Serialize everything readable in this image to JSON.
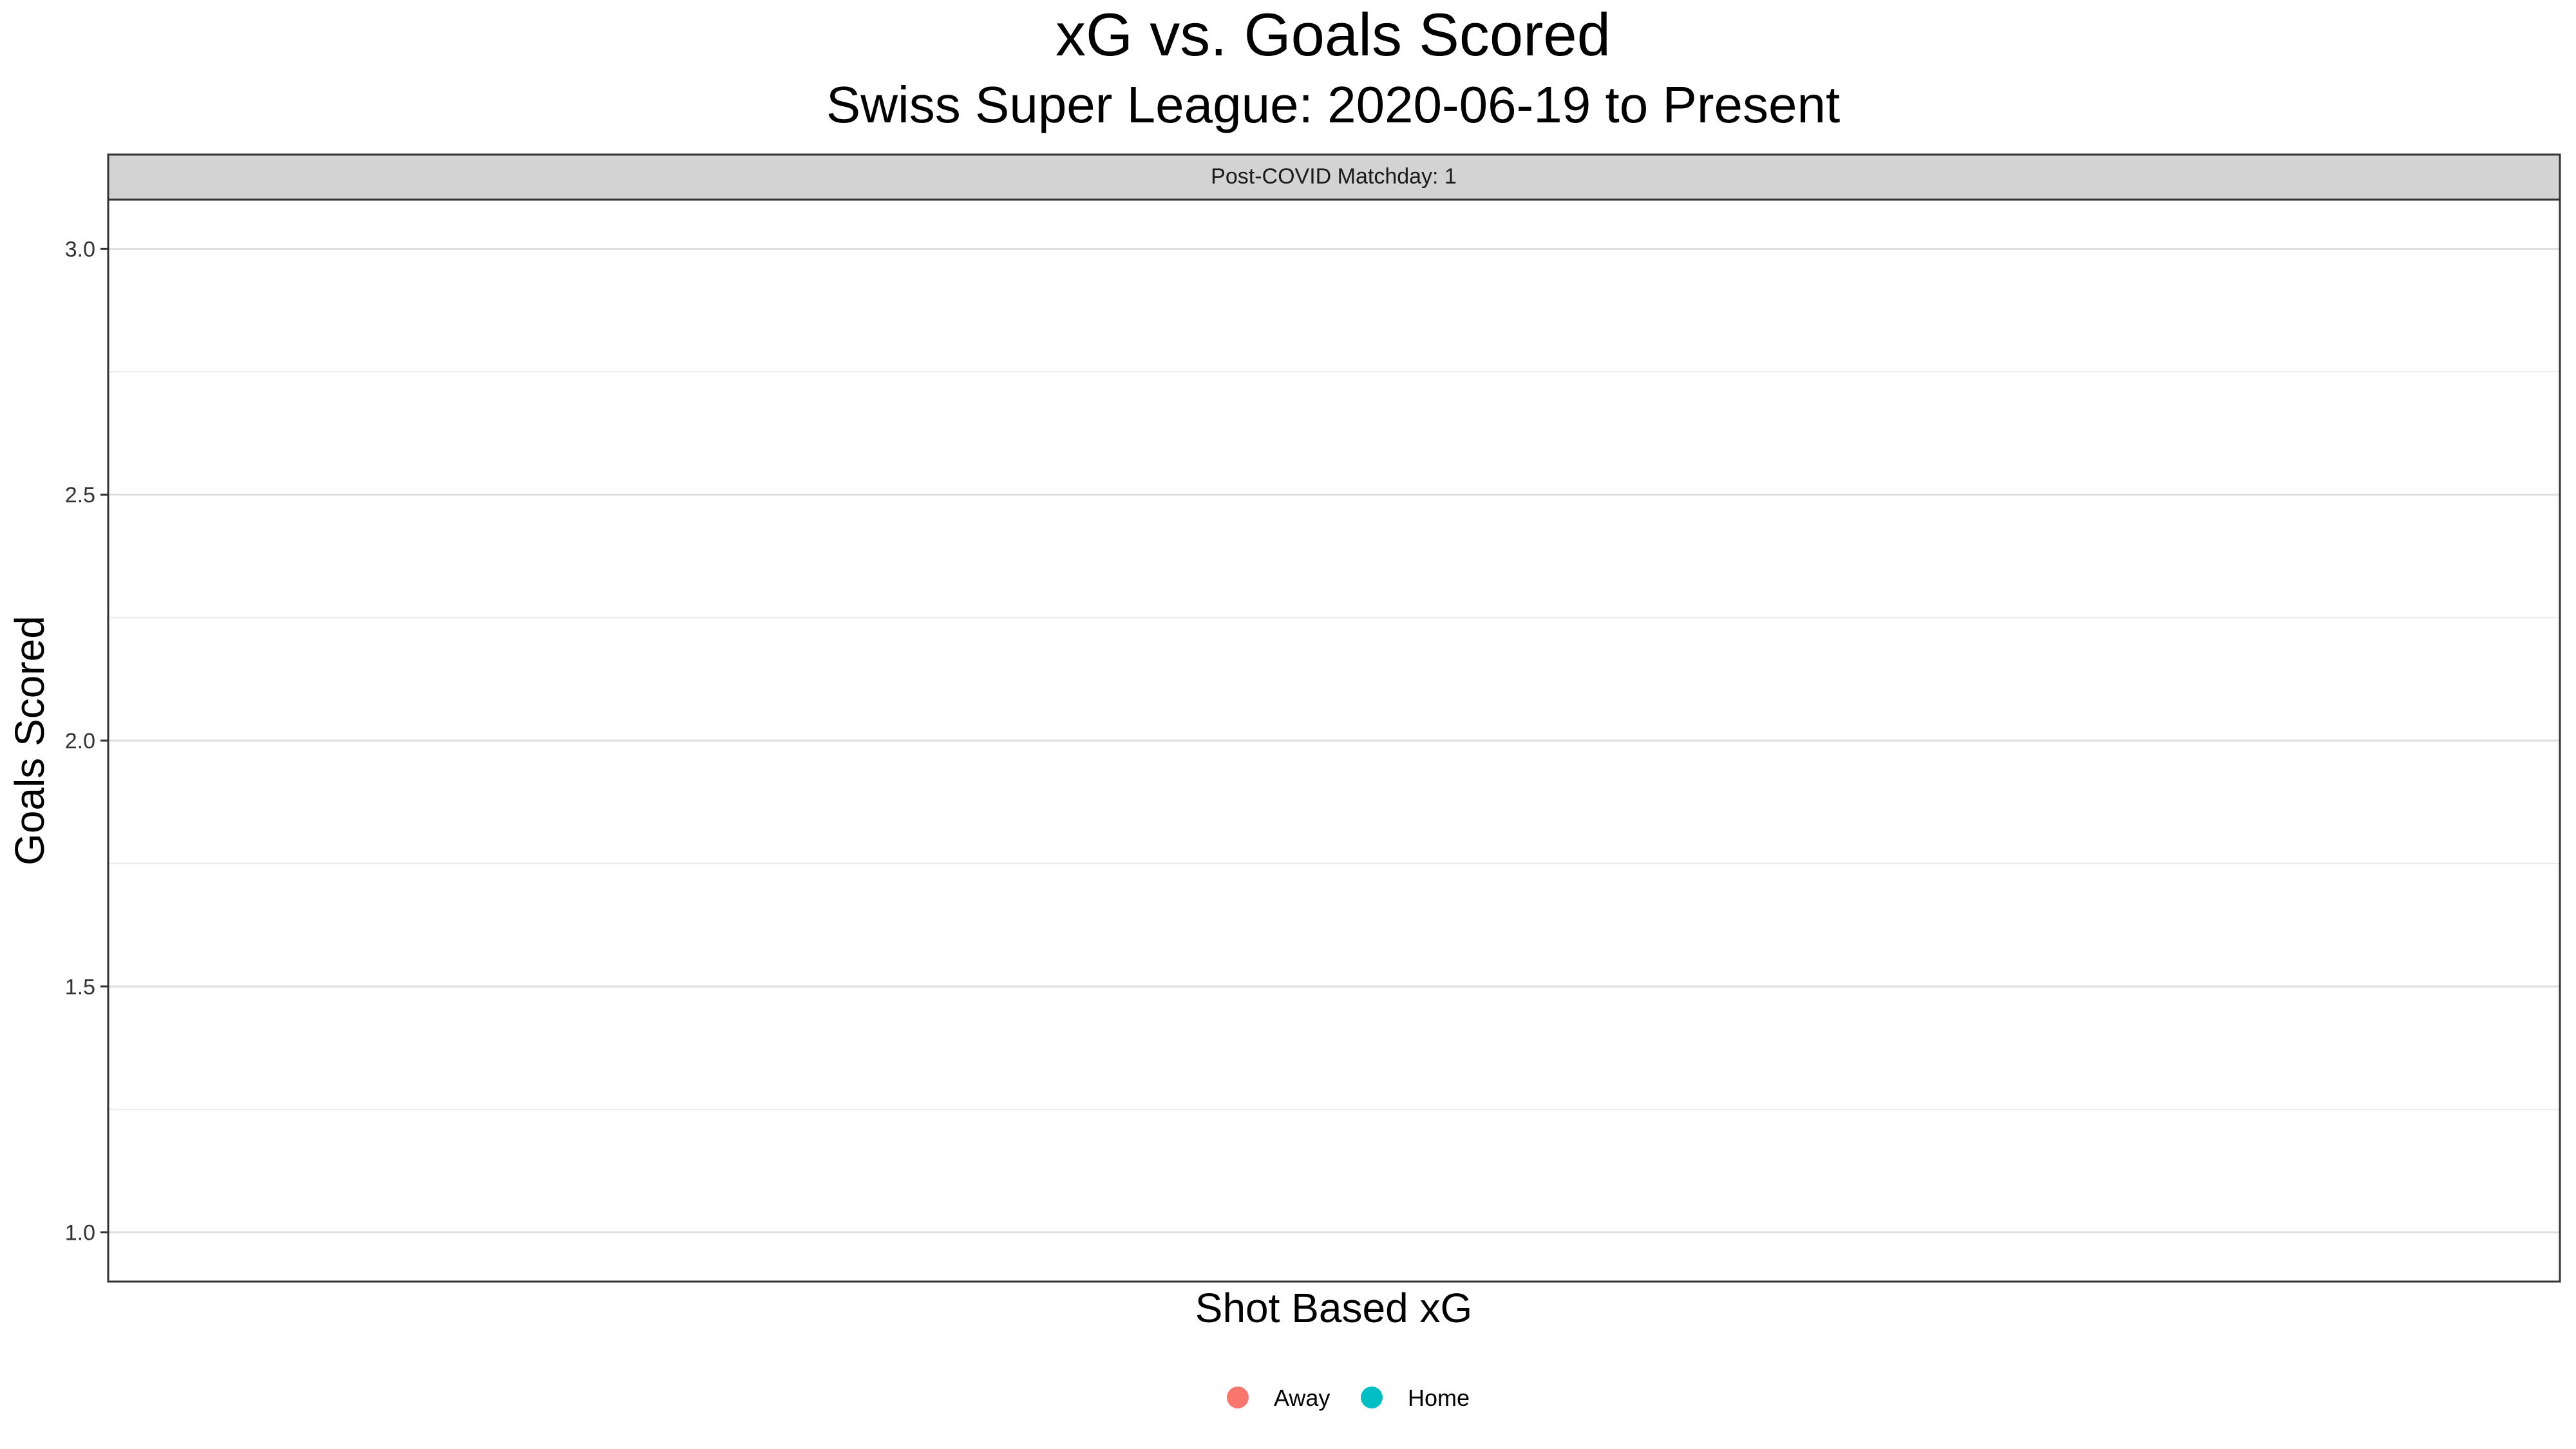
{
  "chart_data": {
    "type": "scatter",
    "title": "xG vs. Goals Scored",
    "subtitle": "Swiss Super League: 2020-06-19 to Present",
    "facet_label": "Post-COVID Matchday: 1",
    "xlabel": "Shot Based xG",
    "ylabel": "Goals Scored",
    "ylim": [
      0.9,
      3.1
    ],
    "y_ticks": [
      "1.0",
      "1.5",
      "2.0",
      "2.5",
      "3.0"
    ],
    "y_tick_values": [
      1.0,
      1.5,
      2.0,
      2.5,
      3.0
    ],
    "y_minor_values": [
      1.25,
      1.75,
      2.25,
      2.75
    ],
    "x_ticks": [],
    "grid": true,
    "legend_position": "bottom",
    "series": [
      {
        "name": "Away",
        "color": "#F8766D",
        "points": []
      },
      {
        "name": "Home",
        "color": "#00BFC4",
        "points": []
      }
    ]
  }
}
